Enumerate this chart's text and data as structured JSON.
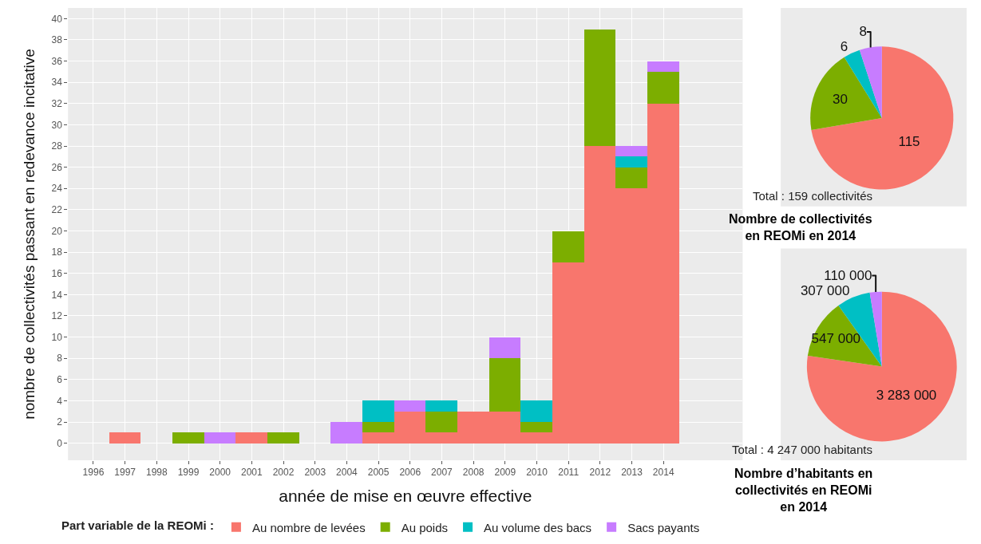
{
  "chart_data": [
    {
      "type": "bar",
      "xlabel": "année de mise en œuvre effective",
      "ylabel": "nombre de collectivités passant en redevance incitative",
      "categories": [
        "1996",
        "1997",
        "1998",
        "1999",
        "2000",
        "2001",
        "2002",
        "2003",
        "2004",
        "2005",
        "2006",
        "2007",
        "2008",
        "2009",
        "2010",
        "2011",
        "2012",
        "2013",
        "2014"
      ],
      "stacked": true,
      "series": [
        {
          "name": "Au nombre de levées",
          "color": "#f8766d",
          "values": [
            0,
            1,
            0,
            0,
            0,
            1,
            0,
            0,
            0,
            1,
            3,
            1,
            3,
            3,
            1,
            17,
            28,
            24,
            32
          ]
        },
        {
          "name": "Au poids",
          "color": "#7cae00",
          "values": [
            0,
            0,
            0,
            1,
            0,
            0,
            1,
            0,
            0,
            1,
            0,
            2,
            0,
            5,
            1,
            3,
            11,
            2,
            3
          ]
        },
        {
          "name": "Au volume des bacs",
          "color": "#00bfc4",
          "values": [
            0,
            0,
            0,
            0,
            0,
            0,
            0,
            0,
            0,
            2,
            0,
            1,
            0,
            0,
            2,
            0,
            0,
            1,
            0
          ]
        },
        {
          "name": "Sacs payants",
          "color": "#c77cff",
          "values": [
            0,
            0,
            0,
            0,
            1,
            0,
            0,
            0,
            2,
            0,
            1,
            0,
            0,
            2,
            0,
            0,
            0,
            1,
            1
          ]
        }
      ],
      "ylim": [
        -1.6,
        41
      ],
      "yticks": [
        0,
        2,
        4,
        6,
        8,
        10,
        12,
        14,
        16,
        18,
        20,
        22,
        24,
        26,
        28,
        30,
        32,
        34,
        36,
        38,
        40
      ],
      "grid": true,
      "legend": "bottom",
      "legend_title": "Part variable de la REOMi :"
    },
    {
      "type": "pie",
      "title": "Nombre de collectivités en REOMi en 2014",
      "categories": [
        null,
        null,
        null,
        null
      ],
      "values": [
        115,
        30,
        6,
        8
      ],
      "colors": [
        "#f8766d",
        "#7cae00",
        "#00bfc4",
        "#c77cff"
      ],
      "data_labels": true,
      "annotations": [
        "Total : 159 collectivités"
      ]
    },
    {
      "type": "pie",
      "title": "Nombre d’habitants en collectivités en REOMi en 2014",
      "categories": [
        null,
        null,
        null,
        null
      ],
      "values": [
        3283000,
        547000,
        307000,
        110000
      ],
      "colors": [
        "#f8766d",
        "#7cae00",
        "#00bfc4",
        "#c77cff"
      ],
      "value_labels": [
        "3 283 000",
        "547 000",
        "307 000",
        "110 000"
      ],
      "annotations": [
        "Total : 4 247 000 habitants"
      ]
    }
  ]
}
